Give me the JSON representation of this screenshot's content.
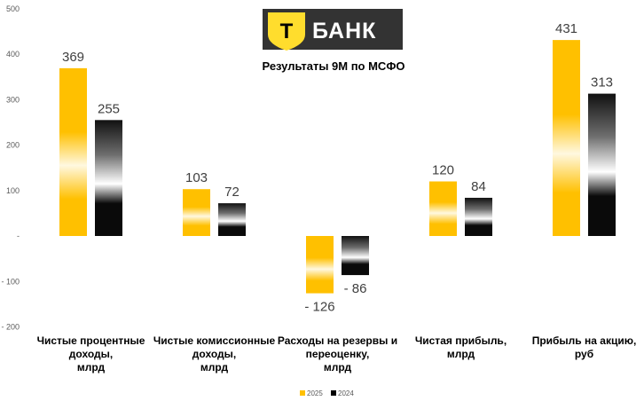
{
  "logo": {
    "shield_letter": "Т",
    "text": "БАНК",
    "colors": {
      "shield": "#FFDD2D",
      "background": "#333333",
      "text": "#FFFFFF"
    }
  },
  "chart_data": {
    "type": "bar",
    "title": "Результаты 9М по МСФО",
    "categories": [
      [
        "Чистые процентные",
        "доходы,",
        "млрд"
      ],
      [
        "Чистые комиссионные",
        "доходы,",
        "млрд"
      ],
      [
        "Расходы на резервы и",
        "переоценку,",
        "млрд"
      ],
      [
        "Чистая прибыль,",
        "млрд"
      ],
      [
        "Прибыль на акцию,",
        "руб"
      ]
    ],
    "series": [
      {
        "name": "2025",
        "values": [
          369,
          103,
          -126,
          120,
          431
        ],
        "labels": [
          "369",
          "103",
          "- 126",
          "120",
          "431"
        ],
        "color": "#FFC000"
      },
      {
        "name": "2024",
        "values": [
          255,
          72,
          -86,
          84,
          313
        ],
        "labels": [
          "255",
          "72",
          "- 86",
          "84",
          "313"
        ],
        "color": "#000000"
      }
    ],
    "y_ticks": [
      {
        "value": 500,
        "label": "500"
      },
      {
        "value": 400,
        "label": "400"
      },
      {
        "value": 300,
        "label": "300"
      },
      {
        "value": 200,
        "label": "200"
      },
      {
        "value": 100,
        "label": "100"
      },
      {
        "value": 0,
        "label": "-"
      },
      {
        "value": -100,
        "label": "- 100"
      },
      {
        "value": -200,
        "label": "- 200"
      }
    ],
    "ylim": [
      -200,
      500
    ],
    "grid": false,
    "legend_position": "bottom"
  }
}
